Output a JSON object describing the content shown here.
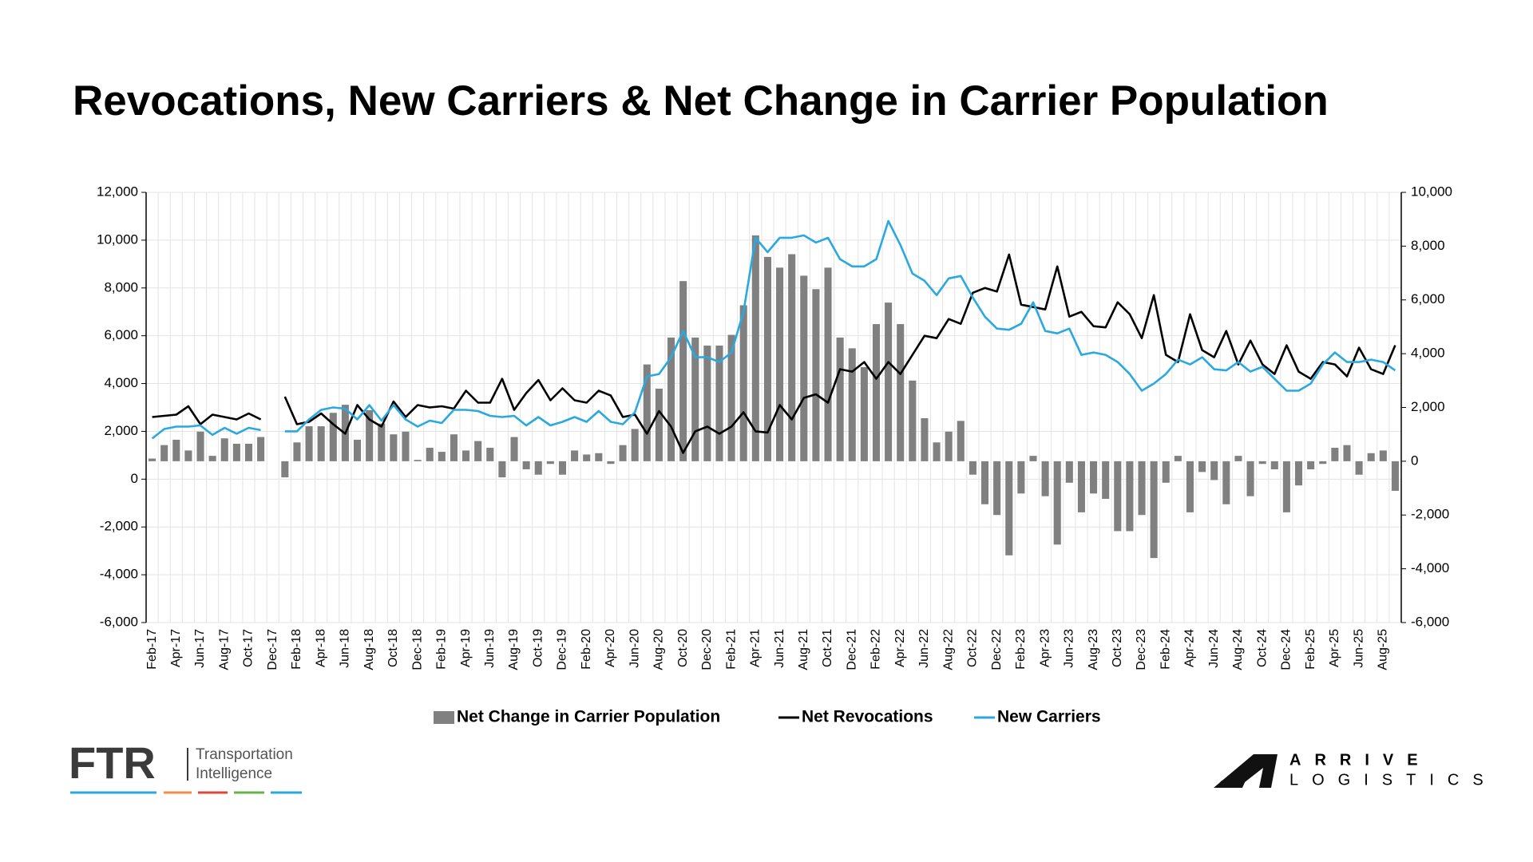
{
  "chart_data": {
    "type": "combo",
    "title": "Revocations, New Carriers & Net Change in Carrier Population",
    "categories": [
      "Feb-17",
      null,
      "Apr-17",
      null,
      "Jun-17",
      null,
      "Aug-17",
      null,
      "Oct-17",
      null,
      "Dec-17",
      null,
      "Feb-18",
      null,
      "Apr-18",
      null,
      "Jun-18",
      null,
      "Aug-18",
      null,
      "Oct-18",
      null,
      "Dec-18",
      null,
      "Feb-19",
      null,
      "Apr-19",
      null,
      "Jun-19",
      null,
      "Aug-19",
      null,
      "Oct-19",
      null,
      "Dec-19",
      null,
      "Feb-20",
      null,
      "Apr-20",
      null,
      "Jun-20",
      null,
      "Aug-20",
      null,
      "Oct-20",
      null,
      "Dec-20",
      null,
      "Feb-21",
      null,
      "Apr-21",
      null,
      "Jun-21",
      null,
      "Aug-21",
      null,
      "Oct-21",
      null,
      "Dec-21",
      null,
      "Feb-22",
      null,
      "Apr-22",
      null,
      "Jun-22",
      null,
      "Aug-22",
      null,
      "Oct-22",
      null,
      "Dec-22",
      null,
      "Feb-23",
      null,
      "Apr-23",
      null,
      "Jun-23",
      null,
      "Aug-23",
      null,
      "Oct-23",
      null,
      "Dec-23",
      null,
      "Feb-24",
      null,
      "Apr-24",
      null,
      "Jun-24",
      null,
      "Aug-24",
      null,
      "Oct-24",
      null,
      "Dec-24",
      null,
      "Feb-25",
      null,
      "Apr-25",
      null,
      "Jun-25",
      null,
      "Aug-25",
      null
    ],
    "series": [
      {
        "name": "Net Change in Carrier Population",
        "type": "bar",
        "axis": "y2",
        "color": "#808080",
        "values": [
          100,
          600,
          800,
          400,
          1100,
          200,
          850,
          650,
          650,
          900,
          null,
          -600,
          700,
          1300,
          1300,
          1800,
          2100,
          800,
          1900,
          1400,
          1000,
          1100,
          50,
          500,
          350,
          1000,
          400,
          750,
          500,
          -600,
          900,
          -300,
          -500,
          -100,
          -500,
          400,
          250,
          300,
          -100,
          600,
          1200,
          3600,
          2700,
          4600,
          6700,
          4600,
          4300,
          4300,
          4700,
          5800,
          8400,
          7600,
          7200,
          7700,
          6900,
          6400,
          7200,
          4600,
          4200,
          3500,
          5100,
          5900,
          5100,
          3000,
          1600,
          700,
          1100,
          1500,
          -500,
          -1600,
          -2000,
          -3500,
          -1200,
          200,
          -1300,
          -3100,
          -800,
          -1900,
          -1200,
          -1400,
          -2600,
          -2600,
          -2000,
          -3600,
          -800,
          200,
          -1900,
          -400,
          -700,
          -1600,
          200,
          -1300,
          -100,
          -300,
          -1900,
          -900,
          -300,
          -100,
          500,
          600,
          -500,
          300,
          400,
          -1100
        ]
      },
      {
        "name": "Net Revocations",
        "type": "line",
        "color": "#000000",
        "values": [
          2600,
          2650,
          2700,
          3050,
          2300,
          2700,
          2600,
          2500,
          2750,
          2500,
          null,
          3450,
          2300,
          2400,
          2750,
          2300,
          1900,
          3100,
          2500,
          2200,
          3250,
          2600,
          3100,
          3000,
          3050,
          2950,
          3700,
          3200,
          3200,
          4200,
          2900,
          3600,
          4150,
          3300,
          3800,
          3300,
          3200,
          3700,
          3500,
          2600,
          2700,
          1900,
          2850,
          2200,
          1100,
          2000,
          2200,
          1900,
          2200,
          2800,
          2000,
          1950,
          3100,
          2500,
          3400,
          3550,
          3200,
          4600,
          4500,
          4900,
          4200,
          4900,
          4400,
          5200,
          6000,
          5900,
          6700,
          6500,
          7800,
          8000,
          7850,
          9400,
          7300,
          7200,
          7100,
          8900,
          6800,
          7000,
          6400,
          6350,
          7400,
          6900,
          5900,
          7700,
          5200,
          4900,
          6900,
          5400,
          5100,
          6200,
          4800,
          5800,
          4800,
          4400,
          5600,
          4500,
          4200,
          4900,
          4800,
          4300,
          5500,
          4600,
          4400,
          5600
        ]
      },
      {
        "name": "New Carriers",
        "type": "line",
        "color": "#2aa8e0",
        "values": [
          1700,
          2100,
          2200,
          2200,
          2250,
          1850,
          2150,
          1900,
          2150,
          2050,
          null,
          2000,
          2000,
          2500,
          2900,
          3000,
          2950,
          2500,
          3100,
          2450,
          3100,
          2500,
          2200,
          2450,
          2350,
          2900,
          2900,
          2850,
          2650,
          2600,
          2650,
          2250,
          2600,
          2250,
          2400,
          2600,
          2400,
          2850,
          2400,
          2300,
          2800,
          4300,
          4400,
          5100,
          6200,
          5100,
          5100,
          4900,
          5300,
          7000,
          10100,
          9500,
          10100,
          10100,
          10200,
          9900,
          10100,
          9200,
          8900,
          8900,
          9200,
          10800,
          9800,
          8600,
          8300,
          7700,
          8400,
          8500,
          7600,
          6800,
          6300,
          6250,
          6500,
          7400,
          6200,
          6100,
          6300,
          5200,
          5300,
          5200,
          4900,
          4400,
          3700,
          4000,
          4400,
          5000,
          4800,
          5100,
          4600,
          4550,
          4900,
          4500,
          4700,
          4200,
          3700,
          3700,
          4000,
          4800,
          5300,
          4900,
          4900,
          5000,
          4900,
          4550
        ]
      }
    ],
    "ylim": [
      -6000,
      12000
    ],
    "yticks": [
      {
        "value": -6000,
        "label": "-6,000"
      },
      {
        "value": -4000,
        "label": "-4,000"
      },
      {
        "value": -2000,
        "label": "-2,000"
      },
      0,
      {
        "value": 2000,
        "label": "2,000"
      },
      {
        "value": 4000,
        "label": "4,000"
      },
      {
        "value": 6000,
        "label": "6,000"
      },
      {
        "value": 8000,
        "label": "8,000"
      },
      {
        "value": 10000,
        "label": "10,000"
      },
      {
        "value": 12000,
        "label": "12,000"
      }
    ],
    "y2lim": [
      -6000,
      10000
    ],
    "y2ticks": [
      {
        "value": -6000,
        "label": "-6,000"
      },
      {
        "value": -4000,
        "label": "-4,000"
      },
      {
        "value": -2000,
        "label": "-2,000"
      },
      0,
      {
        "value": 2000,
        "label": "2,000"
      },
      {
        "value": 4000,
        "label": "4,000"
      },
      {
        "value": 6000,
        "label": "6,000"
      },
      {
        "value": 8000,
        "label": "8,000"
      },
      {
        "value": 10000,
        "label": "10,000"
      }
    ],
    "grid": true,
    "legend": "bottom"
  },
  "branding": {
    "left": {
      "mark": "FTR",
      "tagline": [
        "Transportation",
        "Intelligence"
      ]
    },
    "right": [
      "ARRIVE",
      "LOGISTICS"
    ]
  }
}
